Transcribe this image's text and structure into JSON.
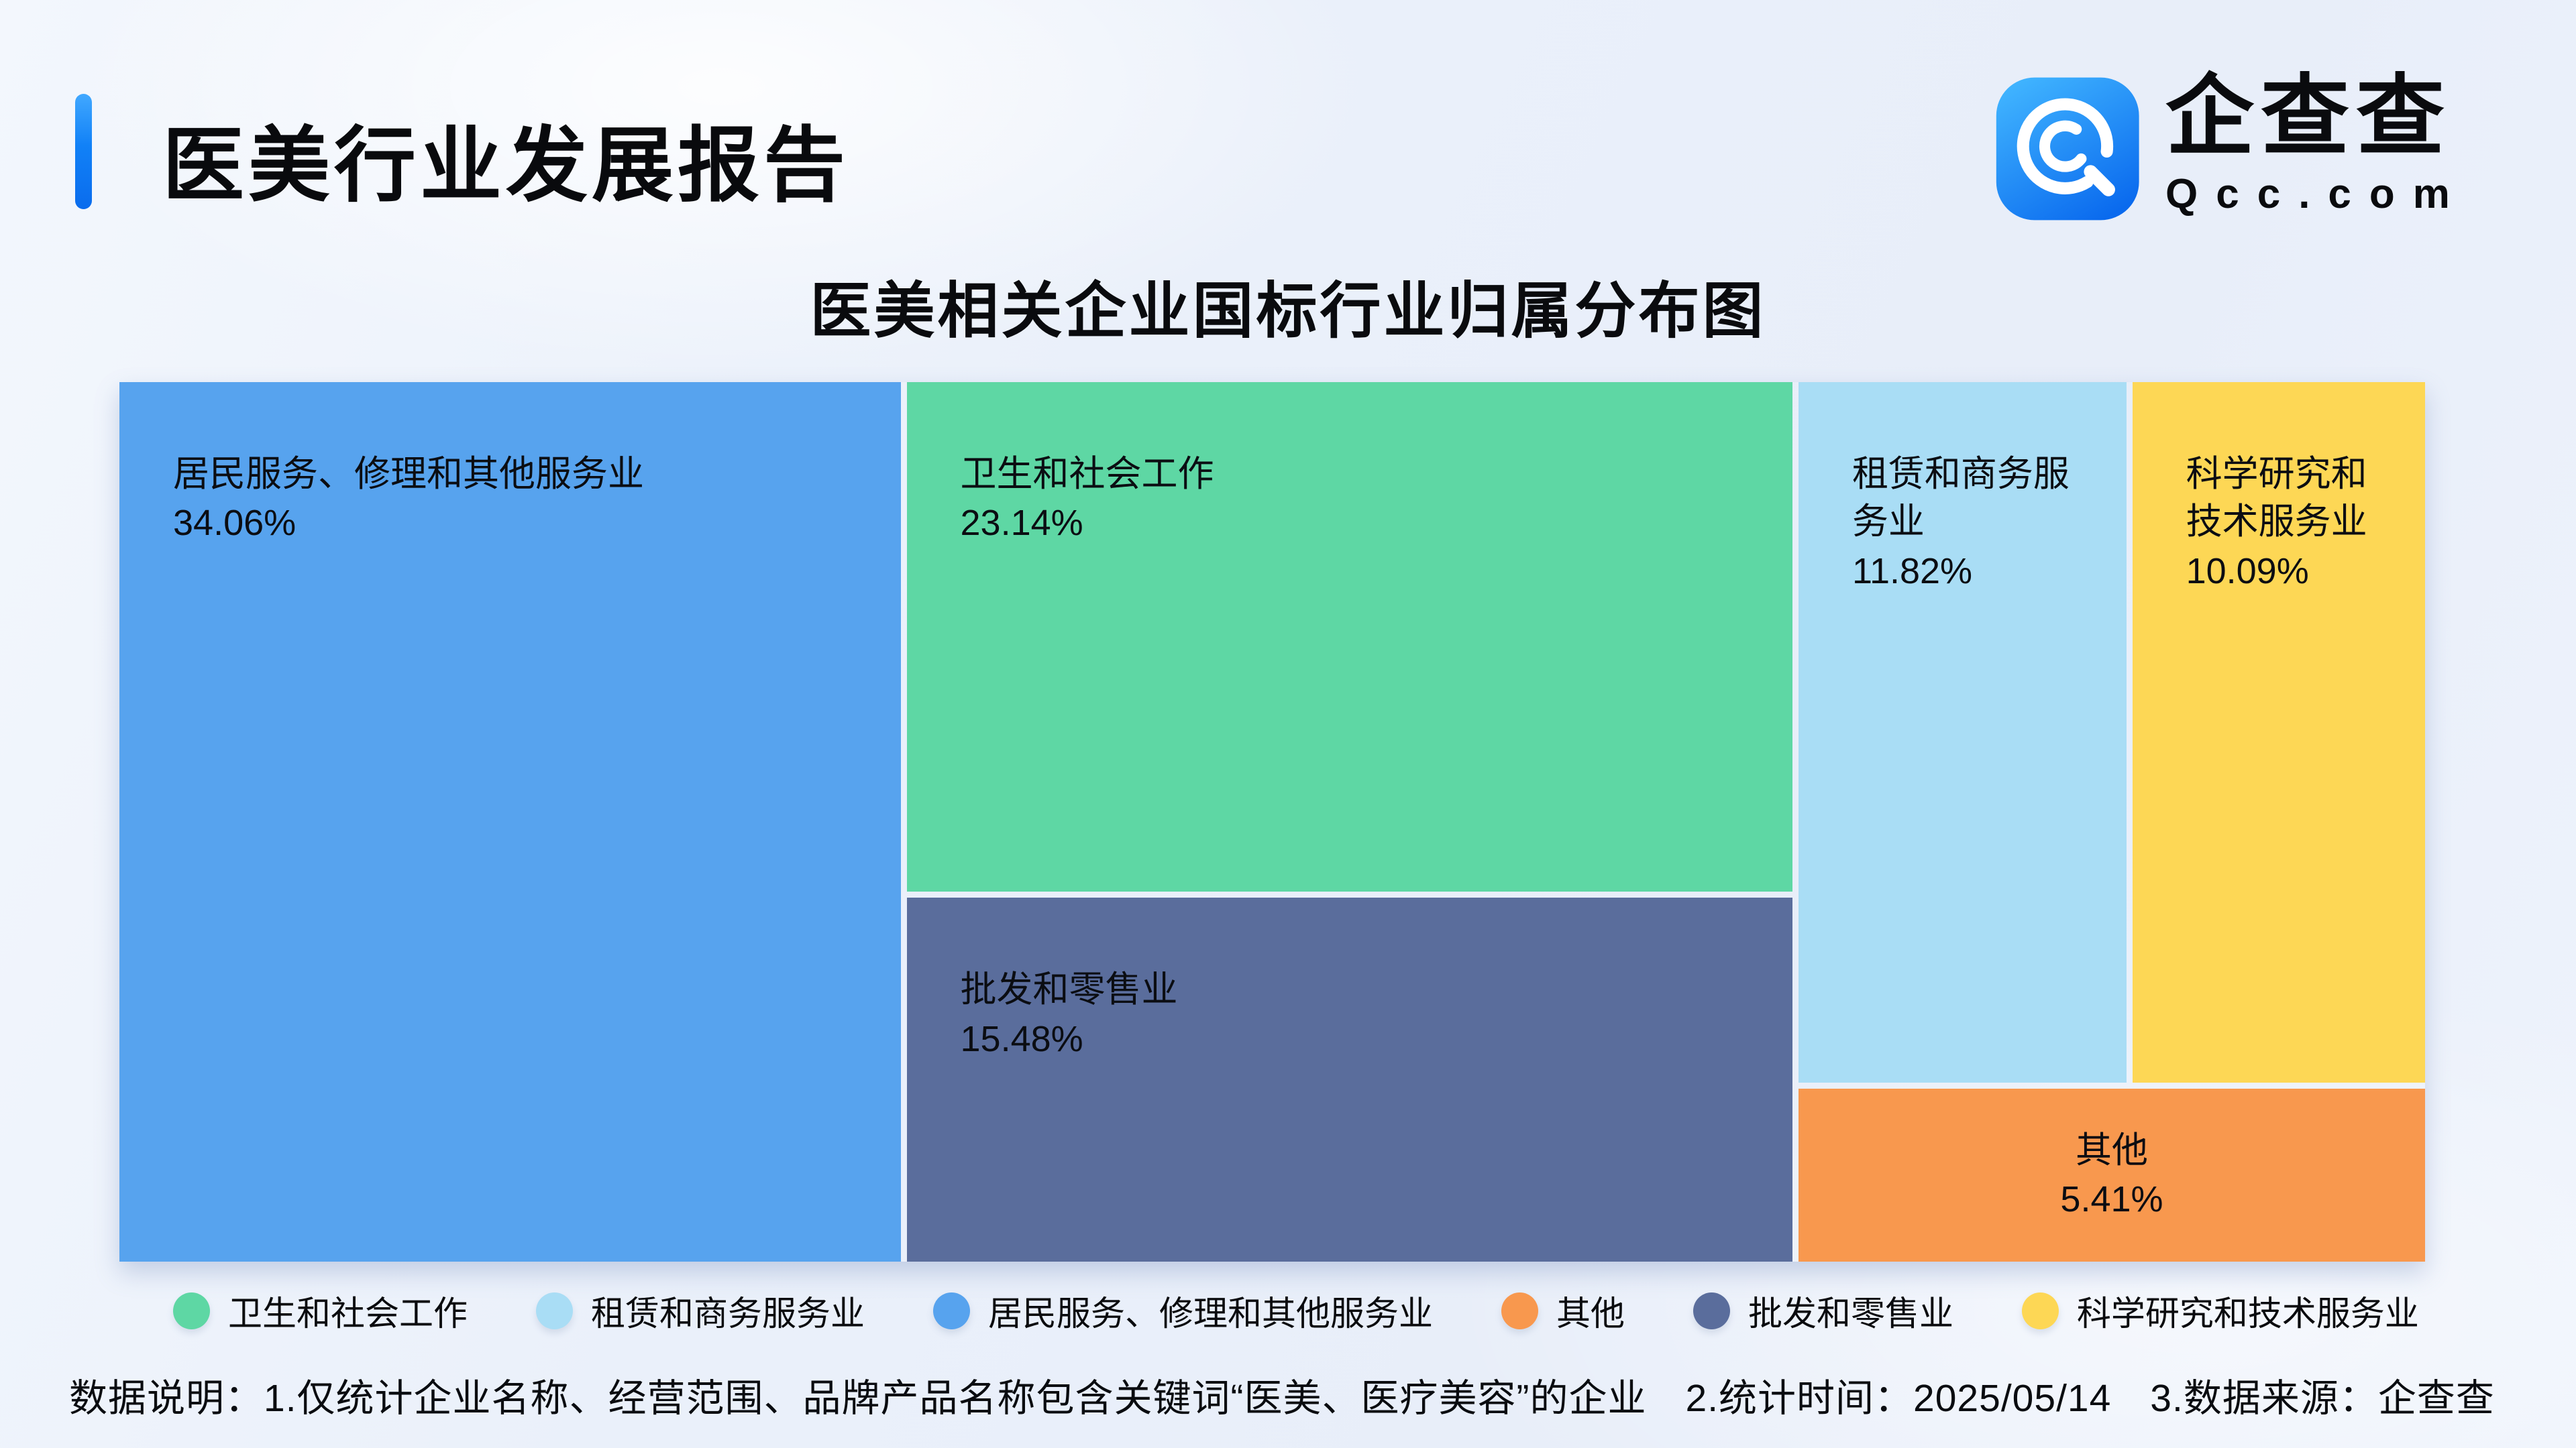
{
  "header": {
    "title": "医美行业发展报告",
    "logo": {
      "brand": "企查查",
      "domain": "Qcc.com"
    }
  },
  "chart_data": {
    "type": "treemap",
    "title": "医美相关企业国标行业归属分布图",
    "unit": "%",
    "items": [
      {
        "id": "resident",
        "label": "居民服务、修理和其他服务业",
        "value": 34.06,
        "display": "34.06%",
        "color": "#57a3ee",
        "center": false
      },
      {
        "id": "health",
        "label": "卫生和社会工作",
        "value": 23.14,
        "display": "23.14%",
        "color": "#5ed7a4",
        "center": false
      },
      {
        "id": "wholesale",
        "label": "批发和零售业",
        "value": 15.48,
        "display": "15.48%",
        "color": "#5a6d9c",
        "center": false
      },
      {
        "id": "leasing",
        "label": "租赁和商务服务业",
        "value": 11.82,
        "display": "11.82%",
        "color": "#a9ddf5",
        "center": false
      },
      {
        "id": "science",
        "label": "科学研究和技术服务业",
        "value": 10.09,
        "display": "10.09%",
        "color": "#fdd755",
        "center": false
      },
      {
        "id": "other",
        "label": "其他",
        "value": 5.41,
        "display": "5.41%",
        "color": "#f8984e",
        "center": true
      }
    ],
    "layout": {
      "columns": [
        {
          "type": "cells",
          "ids": [
            "resident"
          ]
        },
        {
          "type": "cells",
          "ids": [
            "health",
            "wholesale"
          ]
        },
        {
          "type": "rows",
          "rows": [
            {
              "ids": [
                "leasing",
                "science"
              ]
            },
            {
              "ids": [
                "other"
              ]
            }
          ]
        }
      ]
    },
    "legend": {
      "position": "bottom",
      "order": [
        "health",
        "leasing",
        "resident",
        "other",
        "wholesale",
        "science"
      ]
    }
  },
  "footnote": "数据说明：1.仅统计企业名称、经营范围、品牌产品名称包含关键词“医美、医疗美容”的企业　2.统计时间：2025/05/14　3.数据来源：企查查"
}
